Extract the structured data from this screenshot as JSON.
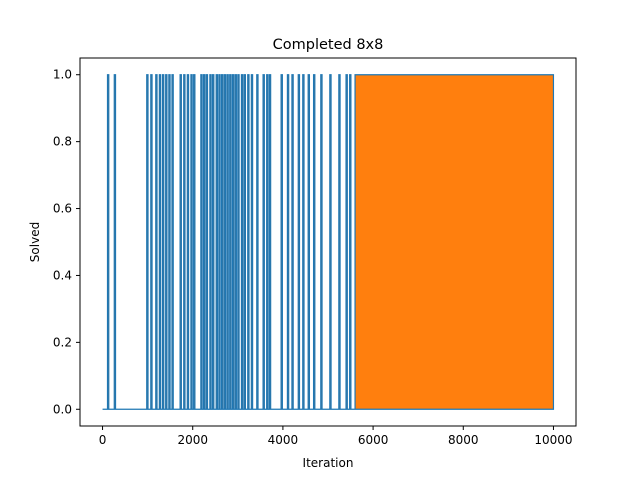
{
  "chart_data": {
    "type": "line",
    "title": "Completed 8x8",
    "xlabel": "Iteration",
    "ylabel": "Solved",
    "xlim": [
      -500,
      10500
    ],
    "ylim": [
      -0.05,
      1.05
    ],
    "xticks": [
      0,
      2000,
      4000,
      6000,
      8000,
      10000
    ],
    "xtick_labels": [
      "0",
      "2000",
      "4000",
      "6000",
      "8000",
      "10000"
    ],
    "yticks": [
      0.0,
      0.2,
      0.4,
      0.6,
      0.8,
      1.0
    ],
    "ytick_labels": [
      "0.0",
      "0.2",
      "0.4",
      "0.6",
      "0.8",
      "1.0"
    ],
    "grid": false,
    "legend": "none",
    "colors": {
      "series_0": "#ff7f0e",
      "series_1": "#1f77b4"
    },
    "series": [
      {
        "style": "filled-binary",
        "dense_region": [
          5600,
          10000
        ],
        "spikes_at": [
          110,
          260,
          980,
          1070,
          1180,
          1260,
          1330,
          1400,
          1470,
          1540,
          1720,
          1800,
          1880,
          1960,
          2020,
          2180,
          2240,
          2300,
          2380,
          2440,
          2520,
          2580,
          2640,
          2700,
          2760,
          2820,
          2880,
          2940,
          3000,
          3080,
          3140,
          3220,
          3300,
          3420,
          3560,
          3640,
          3700,
          3960,
          4100,
          4200,
          4340,
          4440,
          4560,
          4680,
          4840,
          5040,
          5240,
          5400,
          5480
        ],
        "x_end": 10000,
        "values": [
          0,
          1
        ]
      },
      {
        "style": "step-outline",
        "dense_region": [
          5600,
          10000
        ],
        "spikes_at": [
          110,
          260,
          980,
          1070,
          1180,
          1260,
          1330,
          1400,
          1470,
          1540,
          1720,
          1800,
          1880,
          1960,
          2020,
          2180,
          2240,
          2300,
          2380,
          2440,
          2520,
          2580,
          2640,
          2700,
          2760,
          2820,
          2880,
          2940,
          3000,
          3080,
          3140,
          3220,
          3300,
          3420,
          3560,
          3640,
          3700,
          3960,
          4100,
          4200,
          4340,
          4440,
          4560,
          4680,
          4840,
          5040,
          5240,
          5400,
          5480
        ],
        "x_end": 10000,
        "values": [
          0,
          1
        ]
      }
    ]
  }
}
